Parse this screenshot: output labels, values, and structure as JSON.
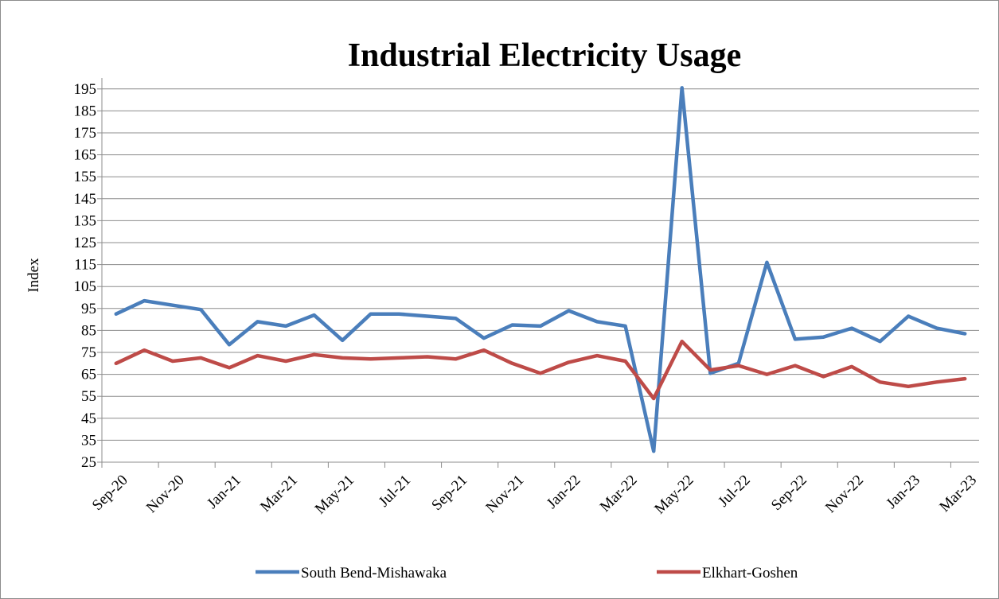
{
  "chart_data": {
    "type": "line",
    "title": "Industrial Electricity Usage",
    "ylabel": "Index",
    "xlabel": "",
    "ylim": [
      25,
      200
    ],
    "yticks": [
      25,
      35,
      45,
      55,
      65,
      75,
      85,
      95,
      105,
      115,
      125,
      135,
      145,
      155,
      165,
      175,
      185,
      195
    ],
    "grid": true,
    "legend_position": "bottom",
    "x": [
      "Sep-20",
      "Oct-20",
      "Nov-20",
      "Dec-20",
      "Jan-21",
      "Feb-21",
      "Mar-21",
      "Apr-21",
      "May-21",
      "Jun-21",
      "Jul-21",
      "Aug-21",
      "Sep-21",
      "Oct-21",
      "Nov-21",
      "Dec-21",
      "Jan-22",
      "Feb-22",
      "Mar-22",
      "Apr-22",
      "May-22",
      "Jun-22",
      "Jul-22",
      "Aug-22",
      "Sep-22",
      "Oct-22",
      "Nov-22",
      "Dec-22",
      "Jan-23",
      "Feb-23",
      "Mar-23"
    ],
    "xtick_labels": [
      "Sep-20",
      "Nov-20",
      "Jan-21",
      "Mar-21",
      "May-21",
      "Jul-21",
      "Sep-21",
      "Nov-21",
      "Jan-22",
      "Mar-22",
      "May-22",
      "Jul-22",
      "Sep-22",
      "Nov-22",
      "Jan-23",
      "Mar-23"
    ],
    "series": [
      {
        "name": "South Bend-Mishawaka",
        "color": "#4a7ebb",
        "values": [
          92.5,
          98.5,
          96.5,
          94.5,
          78.5,
          89,
          87,
          92,
          80.5,
          92.5,
          92.5,
          91.5,
          90.5,
          81.5,
          87.5,
          87,
          94,
          89,
          87,
          30,
          195.5,
          65.5,
          70,
          116,
          81,
          82,
          86,
          80,
          91.5,
          86,
          83.5
        ]
      },
      {
        "name": "Elkhart-Goshen",
        "color": "#be4b48",
        "values": [
          70,
          76,
          71,
          72.5,
          68,
          73.5,
          71,
          74,
          72.5,
          72,
          72.5,
          73,
          72,
          76,
          70,
          65.5,
          70.5,
          73.5,
          71,
          54,
          80,
          67,
          69,
          65,
          69,
          64,
          68.5,
          61.5,
          59.5,
          61.5,
          63
        ]
      }
    ]
  }
}
